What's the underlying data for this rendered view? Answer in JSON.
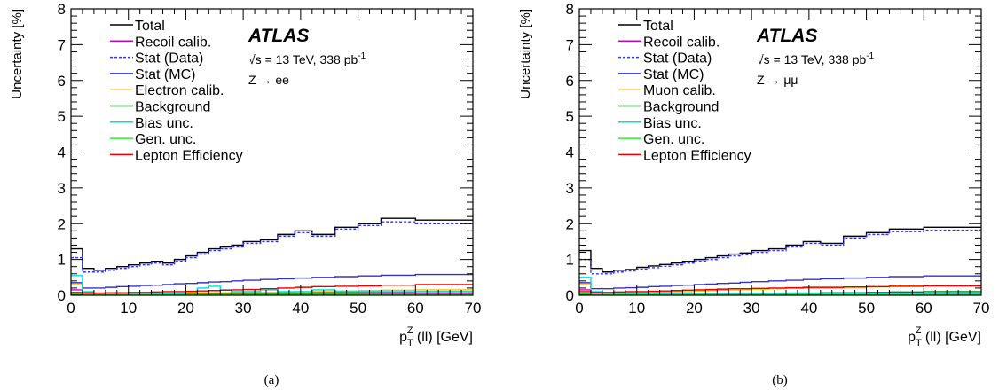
{
  "chart_data": [
    {
      "type": "line",
      "panel_label": "(a)",
      "xlabel": "p_T^Z (ll) [GeV]",
      "ylabel": "Uncertainty [%]",
      "xlim": [
        0,
        70
      ],
      "ylim": [
        0,
        8
      ],
      "x_ticks": [
        0,
        10,
        20,
        30,
        40,
        50,
        60,
        70
      ],
      "y_ticks": [
        0,
        1,
        2,
        3,
        4,
        5,
        6,
        7,
        8
      ],
      "grid": false,
      "legend_position": "top-left",
      "atlas_label": "ATLAS",
      "energy_label": "√s = 13 TeV, 338 pb",
      "energy_label_sup": "-1",
      "channel_label": "Z → ee",
      "bin_edges": [
        0,
        2,
        4,
        6,
        8,
        10,
        12,
        14,
        16,
        18,
        20,
        22,
        24,
        26,
        28,
        30,
        33,
        36,
        39,
        42,
        46,
        50,
        54,
        60,
        70
      ],
      "series": [
        {
          "name": "Total",
          "color": "#000000",
          "dashed": false,
          "values": [
            1.3,
            0.75,
            0.7,
            0.75,
            0.8,
            0.85,
            0.9,
            0.95,
            0.9,
            1.0,
            1.1,
            1.2,
            1.3,
            1.35,
            1.4,
            1.5,
            1.55,
            1.7,
            1.8,
            1.7,
            1.9,
            2.0,
            2.15,
            2.1
          ]
        },
        {
          "name": "Recoil calib.",
          "color": "#cc00cc",
          "dashed": false,
          "values": [
            0.15,
            0.07,
            0.06,
            0.05,
            0.05,
            0.05,
            0.05,
            0.05,
            0.05,
            0.05,
            0.05,
            0.05,
            0.05,
            0.05,
            0.05,
            0.05,
            0.05,
            0.05,
            0.05,
            0.05,
            0.05,
            0.05,
            0.05,
            0.05
          ]
        },
        {
          "name": "Stat (Data)",
          "color": "#3333ff",
          "dashed": true,
          "values": [
            1.05,
            0.65,
            0.65,
            0.7,
            0.75,
            0.8,
            0.85,
            0.9,
            0.85,
            0.95,
            1.05,
            1.15,
            1.25,
            1.3,
            1.35,
            1.45,
            1.5,
            1.65,
            1.75,
            1.65,
            1.85,
            1.95,
            2.05,
            2.0
          ]
        },
        {
          "name": "Stat (MC)",
          "color": "#3333cc",
          "dashed": false,
          "values": [
            0.35,
            0.2,
            0.2,
            0.22,
            0.24,
            0.25,
            0.27,
            0.28,
            0.3,
            0.32,
            0.33,
            0.35,
            0.37,
            0.38,
            0.4,
            0.42,
            0.44,
            0.46,
            0.48,
            0.5,
            0.52,
            0.54,
            0.56,
            0.58
          ]
        },
        {
          "name": "Electron calib.",
          "color": "#ffbb00",
          "dashed": false,
          "values": [
            0.3,
            0.05,
            0.04,
            0.04,
            0.04,
            0.04,
            0.04,
            0.05,
            0.05,
            0.05,
            0.06,
            0.06,
            0.06,
            0.07,
            0.07,
            0.08,
            0.08,
            0.09,
            0.1,
            0.1,
            0.12,
            0.13,
            0.14,
            0.15
          ]
        },
        {
          "name": "Background",
          "color": "#008800",
          "dashed": false,
          "values": [
            0.02,
            0.02,
            0.02,
            0.02,
            0.02,
            0.02,
            0.02,
            0.02,
            0.03,
            0.03,
            0.03,
            0.03,
            0.04,
            0.04,
            0.04,
            0.05,
            0.05,
            0.06,
            0.06,
            0.07,
            0.07,
            0.08,
            0.09,
            0.1
          ]
        },
        {
          "name": "Bias unc.",
          "color": "#00dddd",
          "dashed": false,
          "values": [
            0.55,
            0.1,
            0.05,
            0.05,
            0.05,
            0.05,
            0.05,
            0.05,
            0.05,
            0.05,
            0.1,
            0.2,
            0.25,
            0.15,
            0.1,
            0.1,
            0.15,
            0.1,
            0.1,
            0.15,
            0.1,
            0.1,
            0.1,
            0.1
          ]
        },
        {
          "name": "Gen. unc.",
          "color": "#33ee33",
          "dashed": false,
          "values": [
            0.05,
            0.03,
            0.02,
            0.02,
            0.02,
            0.02,
            0.02,
            0.02,
            0.02,
            0.02,
            0.02,
            0.02,
            0.02,
            0.02,
            0.02,
            0.02,
            0.02,
            0.02,
            0.02,
            0.02,
            0.02,
            0.02,
            0.02,
            0.02
          ]
        },
        {
          "name": "Lepton Efficiency",
          "color": "#ee0000",
          "dashed": false,
          "values": [
            0.08,
            0.06,
            0.06,
            0.07,
            0.07,
            0.08,
            0.08,
            0.09,
            0.1,
            0.1,
            0.11,
            0.12,
            0.13,
            0.14,
            0.15,
            0.16,
            0.18,
            0.2,
            0.22,
            0.24,
            0.25,
            0.26,
            0.28,
            0.3
          ]
        }
      ]
    },
    {
      "type": "line",
      "panel_label": "(b)",
      "xlabel": "p_T^Z (ll) [GeV]",
      "ylabel": "Uncertainty [%]",
      "xlim": [
        0,
        70
      ],
      "ylim": [
        0,
        8
      ],
      "x_ticks": [
        0,
        10,
        20,
        30,
        40,
        50,
        60,
        70
      ],
      "y_ticks": [
        0,
        1,
        2,
        3,
        4,
        5,
        6,
        7,
        8
      ],
      "grid": false,
      "legend_position": "top-left",
      "atlas_label": "ATLAS",
      "energy_label": "√s = 13 TeV, 338 pb",
      "energy_label_sup": "-1",
      "channel_label": "Z → μμ",
      "bin_edges": [
        0,
        2,
        4,
        6,
        8,
        10,
        12,
        14,
        16,
        18,
        20,
        22,
        24,
        26,
        28,
        30,
        33,
        36,
        39,
        42,
        46,
        50,
        54,
        60,
        70
      ],
      "series": [
        {
          "name": "Total",
          "color": "#000000",
          "dashed": false,
          "values": [
            1.25,
            0.75,
            0.65,
            0.7,
            0.72,
            0.78,
            0.82,
            0.86,
            0.9,
            0.95,
            1.0,
            1.05,
            1.1,
            1.15,
            1.18,
            1.25,
            1.3,
            1.4,
            1.5,
            1.45,
            1.65,
            1.75,
            1.85,
            1.9
          ]
        },
        {
          "name": "Recoil calib.",
          "color": "#cc00cc",
          "dashed": false,
          "values": [
            0.15,
            0.07,
            0.06,
            0.05,
            0.05,
            0.05,
            0.05,
            0.05,
            0.05,
            0.05,
            0.05,
            0.05,
            0.05,
            0.05,
            0.05,
            0.05,
            0.05,
            0.05,
            0.05,
            0.05,
            0.05,
            0.05,
            0.05,
            0.05
          ]
        },
        {
          "name": "Stat (Data)",
          "color": "#3333ff",
          "dashed": true,
          "values": [
            1.0,
            0.6,
            0.6,
            0.65,
            0.68,
            0.73,
            0.77,
            0.81,
            0.85,
            0.9,
            0.95,
            1.0,
            1.05,
            1.1,
            1.13,
            1.2,
            1.25,
            1.35,
            1.45,
            1.4,
            1.6,
            1.7,
            1.78,
            1.82
          ]
        },
        {
          "name": "Stat (MC)",
          "color": "#3333cc",
          "dashed": false,
          "values": [
            0.35,
            0.18,
            0.18,
            0.2,
            0.21,
            0.22,
            0.24,
            0.25,
            0.27,
            0.28,
            0.3,
            0.31,
            0.33,
            0.34,
            0.36,
            0.38,
            0.4,
            0.42,
            0.44,
            0.46,
            0.48,
            0.5,
            0.52,
            0.54
          ]
        },
        {
          "name": "Muon calib.",
          "color": "#ffbb00",
          "dashed": false,
          "values": [
            0.3,
            0.08,
            0.07,
            0.07,
            0.08,
            0.08,
            0.08,
            0.09,
            0.1,
            0.1,
            0.12,
            0.13,
            0.14,
            0.15,
            0.16,
            0.17,
            0.18,
            0.19,
            0.2,
            0.2,
            0.22,
            0.23,
            0.26,
            0.28
          ]
        },
        {
          "name": "Background",
          "color": "#008800",
          "dashed": false,
          "values": [
            0.02,
            0.02,
            0.02,
            0.02,
            0.02,
            0.02,
            0.02,
            0.02,
            0.03,
            0.03,
            0.03,
            0.03,
            0.04,
            0.04,
            0.04,
            0.05,
            0.05,
            0.06,
            0.06,
            0.07,
            0.07,
            0.08,
            0.09,
            0.1
          ]
        },
        {
          "name": "Bias unc.",
          "color": "#00dddd",
          "dashed": false,
          "values": [
            0.5,
            0.1,
            0.05,
            0.05,
            0.05,
            0.05,
            0.05,
            0.05,
            0.05,
            0.05,
            0.05,
            0.05,
            0.05,
            0.05,
            0.05,
            0.05,
            0.05,
            0.05,
            0.05,
            0.05,
            0.05,
            0.05,
            0.05,
            0.05
          ]
        },
        {
          "name": "Gen. unc.",
          "color": "#33ee33",
          "dashed": false,
          "values": [
            0.05,
            0.03,
            0.02,
            0.02,
            0.02,
            0.02,
            0.02,
            0.02,
            0.02,
            0.02,
            0.02,
            0.02,
            0.02,
            0.02,
            0.02,
            0.02,
            0.02,
            0.02,
            0.02,
            0.02,
            0.02,
            0.02,
            0.02,
            0.02
          ]
        },
        {
          "name": "Lepton Efficiency",
          "color": "#ee0000",
          "dashed": false,
          "values": [
            0.1,
            0.08,
            0.08,
            0.09,
            0.1,
            0.1,
            0.11,
            0.12,
            0.13,
            0.14,
            0.15,
            0.16,
            0.17,
            0.18,
            0.18,
            0.19,
            0.2,
            0.21,
            0.22,
            0.22,
            0.23,
            0.24,
            0.25,
            0.26
          ]
        }
      ]
    }
  ]
}
